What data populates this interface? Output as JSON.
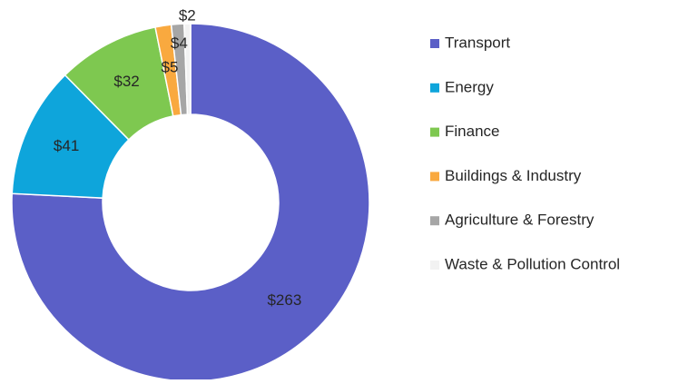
{
  "chart_data": {
    "type": "donut",
    "categories": [
      "Transport",
      "Energy",
      "Finance",
      "Buildings & Industry",
      "Agriculture & Forestry",
      "Waste & Pollution Control"
    ],
    "values": [
      263,
      41,
      32,
      5,
      4,
      2
    ],
    "value_labels": [
      "$263",
      "$41",
      "$32",
      "$5",
      "$4",
      "$2"
    ],
    "colors": [
      "#5b5fc7",
      "#0ea5db",
      "#7ec850",
      "#f9a93f",
      "#a6a6a6",
      "#f2f2f2"
    ],
    "legend": "right"
  }
}
